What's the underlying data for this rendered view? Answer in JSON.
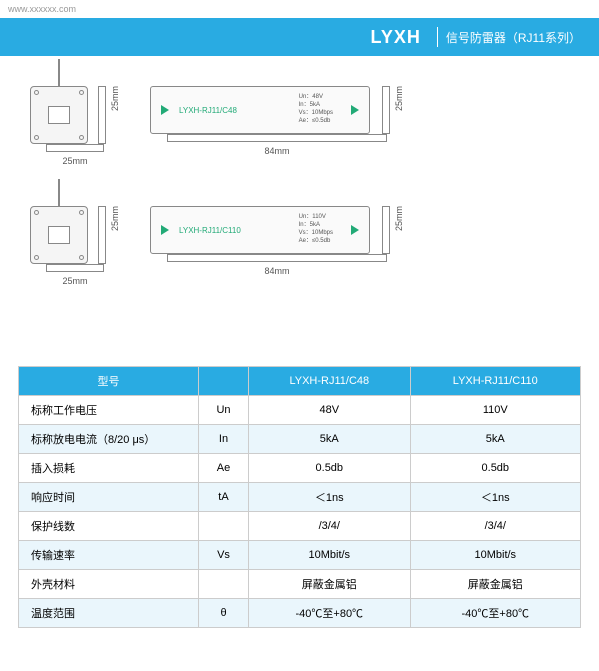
{
  "url": "www.xxxxxx.com",
  "header": {
    "brand": "LYXH",
    "subtitle": "信号防雷器（RJ11系列）"
  },
  "diagrams": {
    "row1": {
      "small": {
        "w": "25mm",
        "h": "25mm"
      },
      "long": {
        "model": "LYXH-RJ11/C48",
        "specs": [
          "Un：48V",
          "In：5kA",
          "Vs：10Mbps",
          "Ae：≤0.5db"
        ],
        "w": "84mm",
        "h": "25mm"
      }
    },
    "row2": {
      "small": {
        "w": "25mm",
        "h": "25mm"
      },
      "long": {
        "model": "LYXH-RJ11/C110",
        "specs": [
          "Un：110V",
          "In：5kA",
          "Vs：10Mbps",
          "Ae：≤0.5db"
        ],
        "w": "84mm",
        "h": "25mm"
      }
    }
  },
  "table": {
    "head": {
      "c0": "型号",
      "c1": "",
      "c2": "LYXH-RJ11/C48",
      "c3": "LYXH-RJ11/C110"
    },
    "rows": [
      {
        "label": "标称工作电压",
        "sym": "Un",
        "v1": "48V",
        "v2": "110V"
      },
      {
        "label": "标称放电电流（8/20 μs）",
        "sym": "In",
        "v1": "5kA",
        "v2": "5kA"
      },
      {
        "label": "插入损耗",
        "sym": "Ae",
        "v1": "0.5db",
        "v2": "0.5db"
      },
      {
        "label": "响应时间",
        "sym": "tA",
        "v1": "＜1ns",
        "v2": "＜1ns"
      },
      {
        "label": "保护线数",
        "sym": "",
        "v1": "/3/4/",
        "v2": "/3/4/"
      },
      {
        "label": "传输速率",
        "sym": "Vs",
        "v1": "10Mbit/s",
        "v2": "10Mbit/s"
      },
      {
        "label": "外壳材料",
        "sym": "",
        "v1": "屏蔽金属铝",
        "v2": "屏蔽金属铝"
      },
      {
        "label": "温度范围",
        "sym": "θ",
        "v1": "-40℃至+80℃",
        "v2": "-40℃至+80℃"
      }
    ]
  },
  "colors": {
    "accent": "#29abe2",
    "row_alt": "#eaf6fc",
    "diagram_stroke": "#888888",
    "arrow": "#22aa77"
  }
}
